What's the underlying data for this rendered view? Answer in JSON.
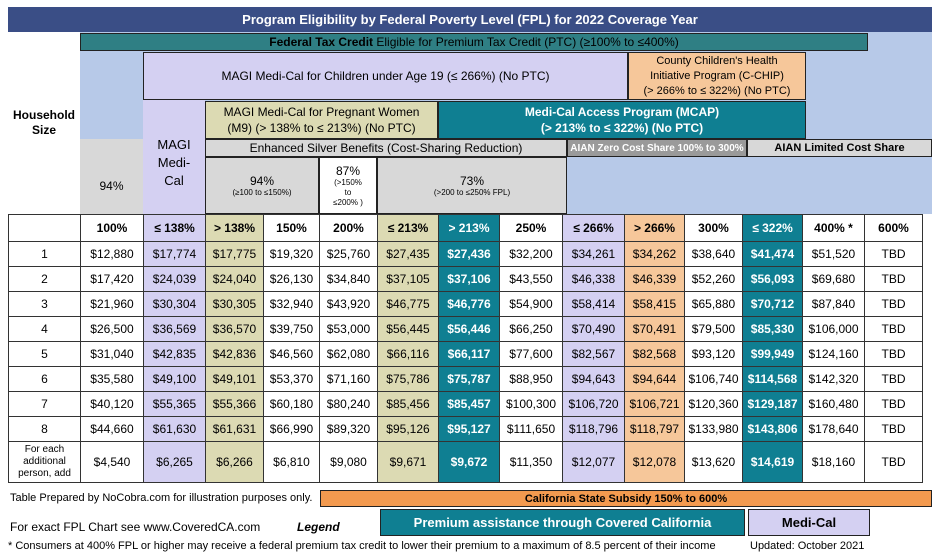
{
  "title": "Program Eligibility by Federal Poverty Level (FPL) for  2022 Coverage Year",
  "household_label": "Household Size",
  "federal_tax_credit": {
    "bold": "Federal Tax Credit",
    "rest": " Eligible for Premium Tax Credit (PTC) (≥100% to ≤400%)"
  },
  "magi_children": "MAGI Medi-Cal for Children under Age 19 (≤ 266%) (No PTC)",
  "cchip": {
    "line1": "County Children's Health",
    "line2": "Initiative Program (C-CHIP)",
    "line3": "(> 266% to ≤ 322%) (No PTC)"
  },
  "magi_medical": "MAGI Medi-Cal",
  "pregnant": {
    "line1": "MAGI Medi-Cal for Pregnant Women",
    "line2": "(M9) (> 138% to ≤ 213%) (No PTC)"
  },
  "mcap": {
    "line1": "Medi-Cal Access Program (MCAP)",
    "line2": "(> 213% to ≤ 322%) (No PTC)"
  },
  "enhanced_silver": "Enhanced Silver Benefits (Cost-Sharing Reduction)",
  "aian_zero": "AIAN Zero Cost Share 100% to 300%",
  "aian_limited": "AIAN Limited Cost Share",
  "csr_94a": "94%",
  "csr_94b": {
    "pct": "94%",
    "range": "(≥100 to ≤150%)"
  },
  "csr_87": {
    "pct": "87%",
    "r1": "(>150%",
    "r2": "to",
    "r3": "≤200% )"
  },
  "csr_73": {
    "pct": "73%",
    "range": "(>200 to ≤250% FPL)"
  },
  "columns": [
    "100%",
    "≤ 138%",
    "> 138%",
    "150%",
    "200%",
    "≤ 213%",
    "> 213%",
    "250%",
    "≤ 266%",
    "> 266%",
    "300%",
    "≤ 322%",
    "400% *",
    "600%"
  ],
  "rows": [
    {
      "size": "1",
      "values": [
        "$12,880",
        "$17,774",
        "$17,775",
        "$19,320",
        "$25,760",
        "$27,435",
        "$27,436",
        "$32,200",
        "$34,261",
        "$34,262",
        "$38,640",
        "$41,474",
        "$51,520",
        "TBD"
      ]
    },
    {
      "size": "2",
      "values": [
        "$17,420",
        "$24,039",
        "$24,040",
        "$26,130",
        "$34,840",
        "$37,105",
        "$37,106",
        "$43,550",
        "$46,338",
        "$46,339",
        "$52,260",
        "$56,093",
        "$69,680",
        "TBD"
      ]
    },
    {
      "size": "3",
      "values": [
        "$21,960",
        "$30,304",
        "$30,305",
        "$32,940",
        "$43,920",
        "$46,775",
        "$46,776",
        "$54,900",
        "$58,414",
        "$58,415",
        "$65,880",
        "$70,712",
        "$87,840",
        "TBD"
      ]
    },
    {
      "size": "4",
      "values": [
        "$26,500",
        "$36,569",
        "$36,570",
        "$39,750",
        "$53,000",
        "$56,445",
        "$56,446",
        "$66,250",
        "$70,490",
        "$70,491",
        "$79,500",
        "$85,330",
        "$106,000",
        "TBD"
      ]
    },
    {
      "size": "5",
      "values": [
        "$31,040",
        "$42,835",
        "$42,836",
        "$46,560",
        "$62,080",
        "$66,116",
        "$66,117",
        "$77,600",
        "$82,567",
        "$82,568",
        "$93,120",
        "$99,949",
        "$124,160",
        "TBD"
      ]
    },
    {
      "size": "6",
      "values": [
        "$35,580",
        "$49,100",
        "$49,101",
        "$53,370",
        "$71,160",
        "$75,786",
        "$75,787",
        "$88,950",
        "$94,643",
        "$94,644",
        "$106,740",
        "$114,568",
        "$142,320",
        "TBD"
      ]
    },
    {
      "size": "7",
      "values": [
        "$40,120",
        "$55,365",
        "$55,366",
        "$60,180",
        "$80,240",
        "$85,456",
        "$85,457",
        "$100,300",
        "$106,720",
        "$106,721",
        "$120,360",
        "$129,187",
        "$160,480",
        "TBD"
      ]
    },
    {
      "size": "8",
      "values": [
        "$44,660",
        "$61,630",
        "$61,631",
        "$66,990",
        "$89,320",
        "$95,126",
        "$95,127",
        "$111,650",
        "$118,796",
        "$118,797",
        "$133,980",
        "$143,806",
        "$178,640",
        "TBD"
      ]
    },
    {
      "size": "For each additional person, add",
      "values": [
        "$4,540",
        "$6,265",
        "$6,266",
        "$6,810",
        "$9,080",
        "$9,671",
        "$9,672",
        "$11,350",
        "$12,077",
        "$12,078",
        "$13,620",
        "$14,619",
        "$18,160",
        "TBD"
      ]
    }
  ],
  "footer": {
    "prepared": "Table Prepared by NoCobra.com for illustration purposes only.",
    "subsidy": "California State Subsidy 150% to 600%",
    "fpl_chart": "For exact FPL Chart see www.CoveredCA.com",
    "legend": "Legend",
    "premium": "Premium assistance through Covered California",
    "medi_cal": "Medi-Cal",
    "note": "* Consumers at 400% FPL or higher may receive a federal premium tax credit to lower their premium to a maximum of 8.5 percent of their income",
    "updated": "Updated: October 2021"
  },
  "colors": {
    "title_bg": "#3a4e86",
    "lavender": "#d4d0f2",
    "blue": "#b7c9e8",
    "teal": "#0f7f92",
    "olive": "#dcdab3",
    "peach": "#f6c79a",
    "orange": "#f39a4f",
    "gray": "#d8d8d8"
  }
}
